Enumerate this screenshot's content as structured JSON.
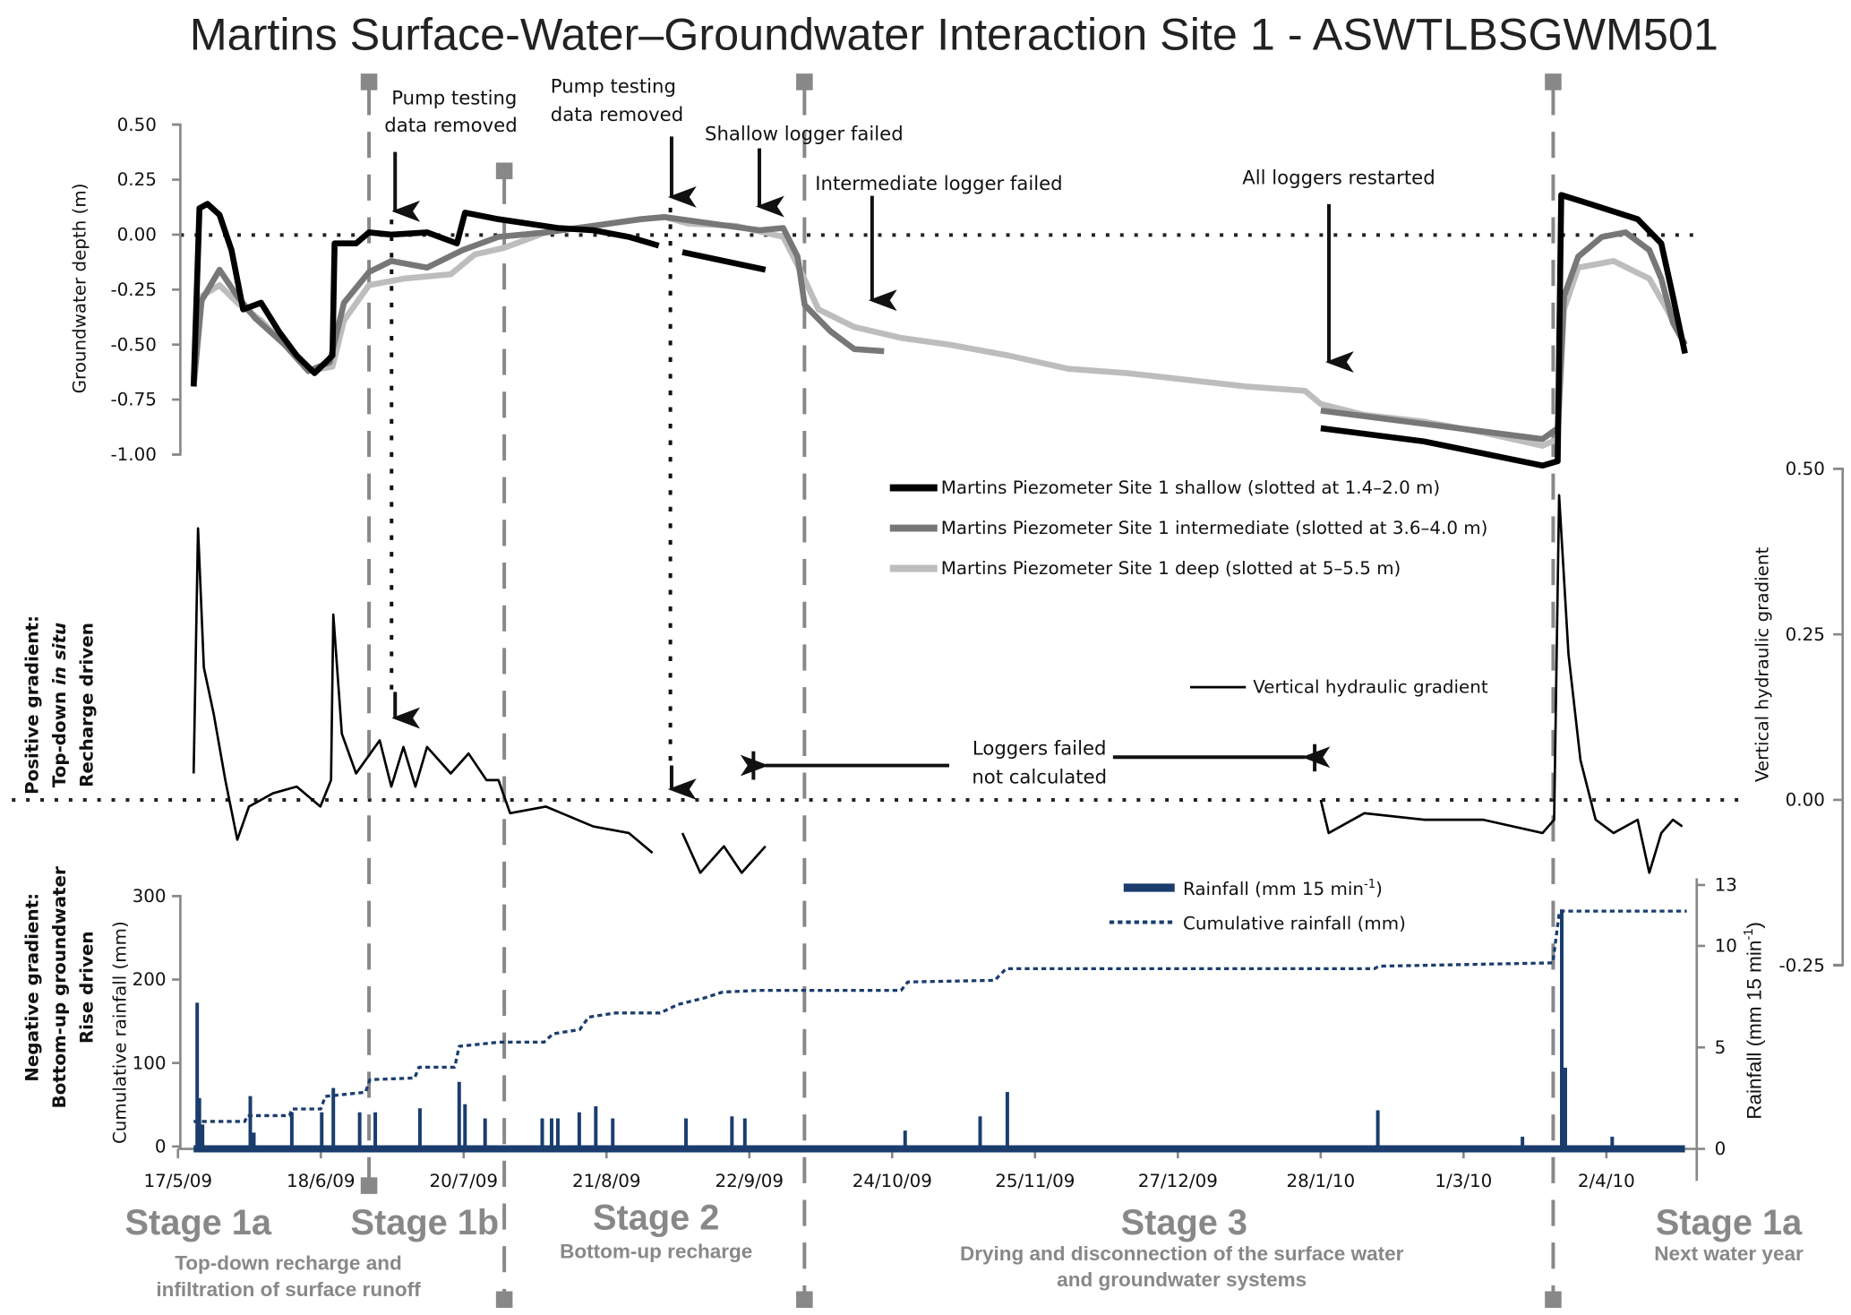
{
  "title": "Martins Surface-Water–Groundwater Interaction Site 1 - ASWTLBSGWM501",
  "colors": {
    "shallow": "#000000",
    "intermediate": "#777777",
    "deep": "#bdbdbd",
    "vhg": "#000000",
    "rain": "#1a3d6e",
    "stage": "#888888"
  },
  "annotations": {
    "pump1_l1": "Pump testing",
    "pump1_l2": "data removed",
    "pump2_l1": "Pump testing",
    "pump2_l2": "data removed",
    "shallow_failed": "Shallow logger failed",
    "intermediate_failed": "Intermediate logger failed",
    "all_restarted": "All loggers restarted",
    "loggers_failed_l1": "Loggers failed",
    "loggers_failed_l2": "not calculated"
  },
  "side_labels": {
    "positive_l1": "Positive gradient:",
    "positive_l2a": "Top-down ",
    "positive_l2b": "in situ",
    "positive_l3": "Recharge driven",
    "negative_l1": "Negative gradient:",
    "negative_l2": "Bottom-up groundwater",
    "negative_l3": "Rise driven"
  },
  "stages": [
    {
      "label": "Stage 1a",
      "desc1": "Top-down recharge and",
      "desc2": "infiltration of surface runoff"
    },
    {
      "label": "Stage 1b",
      "desc1": "",
      "desc2": ""
    },
    {
      "label": "Stage 2",
      "desc1": "Bottom-up recharge",
      "desc2": ""
    },
    {
      "label": "Stage 3",
      "desc1": "Drying and disconnection of the surface water",
      "desc2": "and groundwater systems"
    },
    {
      "label": "Stage 1a",
      "desc1": "Next water year",
      "desc2": ""
    }
  ],
  "chart_data": [
    {
      "type": "line",
      "title": "Groundwater depth",
      "ylabel": "Groundwater depth (m)",
      "ylim": [
        -1.0,
        0.5
      ],
      "yticks": [
        "0.50",
        "0.25",
        "0.00",
        "-0.25",
        "-0.50",
        "-0.75",
        "-1.00"
      ],
      "x_unit": "days since 17/5/09",
      "legend": [
        "Martins Piezometer Site 1 shallow (slotted at 1.4–2.0 m)",
        "Martins Piezometer Site 1 intermediate (slotted at 3.6–4.0 m)",
        "Martins Piezometer Site 1 deep (slotted at 5–5.5 m)"
      ],
      "series": [
        {
          "name": "shallow",
          "points": [
            [
              3.5,
              -0.69
            ],
            [
              4.8,
              0.12
            ],
            [
              6.6,
              0.14
            ],
            [
              9.3,
              0.09
            ],
            [
              12,
              -0.07
            ],
            [
              14.6,
              -0.34
            ],
            [
              18.6,
              -0.31
            ],
            [
              22.6,
              -0.44
            ],
            [
              26.6,
              -0.55
            ],
            [
              30.6,
              -0.63
            ],
            [
              34.6,
              -0.55
            ],
            [
              35.1,
              -0.04
            ],
            [
              39.9,
              -0.04
            ],
            [
              42.8,
              0.01
            ],
            [
              47.8,
              0.0
            ],
            [
              55.8,
              0.01
            ],
            [
              62.5,
              -0.04
            ],
            [
              64.3,
              0.1
            ],
            [
              71.8,
              0.07
            ],
            [
              85.1,
              0.03
            ],
            [
              93,
              0.02
            ],
            [
              101,
              -0.01
            ],
            [
              107.7,
              -0.05
            ],
            null,
            [
              113,
              -0.08
            ],
            [
              131.6,
              -0.16
            ],
            null,
            [
              256,
              -0.88
            ],
            [
              279.1,
              -0.94
            ],
            [
              305.7,
              -1.05
            ],
            [
              309.1,
              -1.03
            ],
            [
              309.9,
              0.18
            ],
            [
              316.3,
              0.14
            ],
            [
              327,
              0.07
            ],
            [
              332.3,
              -0.04
            ],
            [
              334.9,
              -0.28
            ],
            [
              337.6,
              -0.54
            ]
          ]
        },
        {
          "name": "intermediate",
          "points": [
            [
              3.5,
              -0.69
            ],
            [
              5.3,
              -0.3
            ],
            [
              9.3,
              -0.16
            ],
            [
              13.3,
              -0.28
            ],
            [
              17.3,
              -0.38
            ],
            [
              23.9,
              -0.5
            ],
            [
              29.2,
              -0.62
            ],
            [
              34,
              -0.58
            ],
            [
              37.2,
              -0.31
            ],
            [
              42.8,
              -0.17
            ],
            [
              47.8,
              -0.12
            ],
            [
              55.8,
              -0.15
            ],
            [
              63.8,
              -0.07
            ],
            [
              71.8,
              -0.01
            ],
            [
              82.4,
              0.01
            ],
            [
              93,
              0.04
            ],
            [
              103.7,
              0.07
            ],
            [
              109,
              0.08
            ],
            [
              119.6,
              0.05
            ],
            [
              130.3,
              0.02
            ],
            [
              135.6,
              0.03
            ],
            [
              138.8,
              -0.1
            ],
            [
              140.4,
              -0.32
            ],
            [
              146.2,
              -0.44
            ],
            [
              151.5,
              -0.52
            ],
            [
              158.2,
              -0.53
            ],
            null,
            [
              256,
              -0.8
            ],
            [
              279.1,
              -0.86
            ],
            [
              305.7,
              -0.93
            ],
            [
              309.1,
              -0.88
            ],
            [
              310.5,
              -0.28
            ],
            [
              313.7,
              -0.1
            ],
            [
              319,
              -0.01
            ],
            [
              324.3,
              0.01
            ],
            [
              329.6,
              -0.07
            ],
            [
              332.3,
              -0.2
            ],
            [
              334.9,
              -0.4
            ],
            [
              337.6,
              -0.5
            ]
          ]
        },
        {
          "name": "deep",
          "points": [
            [
              3.5,
              -0.66
            ],
            [
              5.3,
              -0.28
            ],
            [
              9.3,
              -0.23
            ],
            [
              13.3,
              -0.31
            ],
            [
              18.6,
              -0.39
            ],
            [
              23.9,
              -0.5
            ],
            [
              29.2,
              -0.62
            ],
            [
              34.6,
              -0.6
            ],
            [
              37.2,
              -0.39
            ],
            [
              42.8,
              -0.23
            ],
            [
              50.5,
              -0.2
            ],
            [
              61.1,
              -0.18
            ],
            [
              66.5,
              -0.09
            ],
            [
              73.1,
              -0.06
            ],
            [
              82.4,
              0.01
            ],
            [
              93,
              0.04
            ],
            [
              103.7,
              0.07
            ],
            [
              109,
              0.08
            ],
            [
              114.3,
              0.05
            ],
            [
              124.9,
              0.04
            ],
            [
              135.6,
              -0.01
            ],
            [
              139.6,
              -0.17
            ],
            [
              143.5,
              -0.34
            ],
            [
              151.5,
              -0.42
            ],
            [
              162.1,
              -0.47
            ],
            [
              172.8,
              -0.5
            ],
            [
              186.1,
              -0.55
            ],
            [
              199.4,
              -0.61
            ],
            [
              212.7,
              -0.63
            ],
            [
              225.9,
              -0.66
            ],
            [
              239.2,
              -0.69
            ],
            [
              252.5,
              -0.71
            ],
            [
              256,
              -0.77
            ],
            [
              265.8,
              -0.82
            ],
            [
              279.1,
              -0.85
            ],
            [
              292.4,
              -0.9
            ],
            [
              305.7,
              -0.96
            ],
            [
              309.1,
              -0.93
            ],
            [
              310.5,
              -0.34
            ],
            [
              313.7,
              -0.15
            ],
            [
              321.6,
              -0.12
            ],
            [
              329.6,
              -0.2
            ],
            [
              333.6,
              -0.34
            ],
            [
              337.6,
              -0.5
            ]
          ]
        }
      ]
    },
    {
      "type": "line",
      "title": "Vertical hydraulic gradient",
      "ylabel": "Vertical hydraulic gradient",
      "ylim": [
        -0.25,
        0.5
      ],
      "yticks": [
        "0.50",
        "0.25",
        "0.00",
        "-0.25"
      ],
      "legend": [
        "Vertical hydraulic gradient"
      ],
      "series": [
        {
          "name": "vhg",
          "points": [
            [
              3.5,
              0.04
            ],
            [
              4.5,
              0.41
            ],
            [
              5.8,
              0.2
            ],
            [
              8,
              0.13
            ],
            [
              10.6,
              0.03
            ],
            [
              13.3,
              -0.06
            ],
            [
              15.9,
              -0.01
            ],
            [
              21.3,
              0.01
            ],
            [
              26.6,
              0.02
            ],
            [
              31.9,
              -0.01
            ],
            [
              34.3,
              0.03
            ],
            [
              34.8,
              0.28
            ],
            [
              36.7,
              0.1
            ],
            [
              39.9,
              0.04
            ],
            [
              45.2,
              0.09
            ],
            [
              47.8,
              0.02
            ],
            [
              50.5,
              0.08
            ],
            [
              53.2,
              0.02
            ],
            [
              55.8,
              0.08
            ],
            [
              61.1,
              0.04
            ],
            [
              65.1,
              0.07
            ],
            [
              69.1,
              0.03
            ],
            [
              71.8,
              0.03
            ],
            [
              74.4,
              -0.02
            ],
            [
              82.4,
              -0.01
            ],
            [
              93,
              -0.04
            ],
            [
              101,
              -0.05
            ],
            [
              106.3,
              -0.08
            ],
            null,
            [
              113,
              -0.05
            ],
            [
              117,
              -0.11
            ],
            [
              122.3,
              -0.07
            ],
            [
              126.3,
              -0.11
            ],
            [
              131.6,
              -0.07
            ],
            null,
            [
              256,
              0.0
            ],
            [
              257.8,
              -0.05
            ],
            [
              265.8,
              -0.02
            ],
            [
              279.1,
              -0.03
            ],
            [
              292.4,
              -0.03
            ],
            [
              305.7,
              -0.05
            ],
            [
              308.3,
              -0.03
            ],
            [
              309.4,
              0.46
            ],
            [
              311.5,
              0.22
            ],
            [
              314.2,
              0.06
            ],
            [
              317.6,
              -0.03
            ],
            [
              321.6,
              -0.05
            ],
            [
              327,
              -0.03
            ],
            [
              329.6,
              -0.11
            ],
            [
              332.3,
              -0.05
            ],
            [
              334.9,
              -0.03
            ],
            [
              337,
              -0.04
            ]
          ]
        }
      ]
    },
    {
      "type": "bar+line",
      "title": "Rainfall",
      "ylabel_left": "Cumulative rainfall (mm)",
      "ylim_left": [
        0,
        300
      ],
      "yticks_left": [
        "0",
        "100",
        "200",
        "300"
      ],
      "ylabel_right": [
        "Rainfall (mm 15 min",
        "-1",
        ")"
      ],
      "ylim_right": [
        0,
        13
      ],
      "yticks_right": [
        "0",
        "5",
        "10",
        "13"
      ],
      "legend": [
        [
          "Rainfall (mm 15 min",
          "-1",
          ")"
        ],
        "Cumulative rainfall (mm)"
      ],
      "rainfall": [
        [
          4.3,
          7.2
        ],
        [
          4.8,
          2.5
        ],
        [
          5.5,
          1.2
        ],
        [
          16.2,
          2.6
        ],
        [
          17,
          0.8
        ],
        [
          25.5,
          1.8
        ],
        [
          32.2,
          1.8
        ],
        [
          34.8,
          3.0
        ],
        [
          40.7,
          1.8
        ],
        [
          44.2,
          1.8
        ],
        [
          54.2,
          2.0
        ],
        [
          63,
          3.3
        ],
        [
          64.3,
          2.2
        ],
        [
          68.8,
          1.5
        ],
        [
          81.6,
          1.5
        ],
        [
          83.7,
          1.5
        ],
        [
          85.1,
          1.5
        ],
        [
          89.9,
          1.8
        ],
        [
          93.6,
          2.1
        ],
        [
          97.4,
          1.5
        ],
        [
          113.8,
          1.5
        ],
        [
          124.1,
          1.6
        ],
        [
          127,
          1.5
        ],
        [
          162.9,
          0.9
        ],
        [
          179.7,
          1.6
        ],
        [
          185.8,
          2.8
        ],
        [
          268.8,
          1.9
        ],
        [
          301.2,
          0.6
        ],
        [
          310,
          11.8
        ],
        [
          310.8,
          4.0
        ],
        [
          321.3,
          0.6
        ]
      ],
      "cumulative": [
        [
          3.5,
          30
        ],
        [
          15,
          30
        ],
        [
          15.5,
          37
        ],
        [
          25,
          37
        ],
        [
          25.5,
          45
        ],
        [
          32,
          45
        ],
        [
          33,
          60
        ],
        [
          42,
          65
        ],
        [
          43,
          80
        ],
        [
          53,
          82
        ],
        [
          54,
          95
        ],
        [
          62,
          95
        ],
        [
          63,
          120
        ],
        [
          72,
          125
        ],
        [
          82,
          125
        ],
        [
          84,
          135
        ],
        [
          90,
          140
        ],
        [
          92,
          155
        ],
        [
          98,
          160
        ],
        [
          108,
          160
        ],
        [
          112,
          170
        ],
        [
          118,
          178
        ],
        [
          122,
          185
        ],
        [
          130,
          187
        ],
        [
          162,
          187
        ],
        [
          163.5,
          197
        ],
        [
          183,
          199
        ],
        [
          185.5,
          213
        ],
        [
          268,
          213
        ],
        [
          269,
          216
        ],
        [
          308,
          220
        ],
        [
          309.5,
          282
        ],
        [
          338,
          282
        ]
      ],
      "x_tick_labels": [
        "17/5/09",
        "18/6/09",
        "20/7/09",
        "21/8/09",
        "22/9/09",
        "24/10/09",
        "25/11/09",
        "27/12/09",
        "28/1/10",
        "1/3/10",
        "2/4/10"
      ]
    }
  ]
}
